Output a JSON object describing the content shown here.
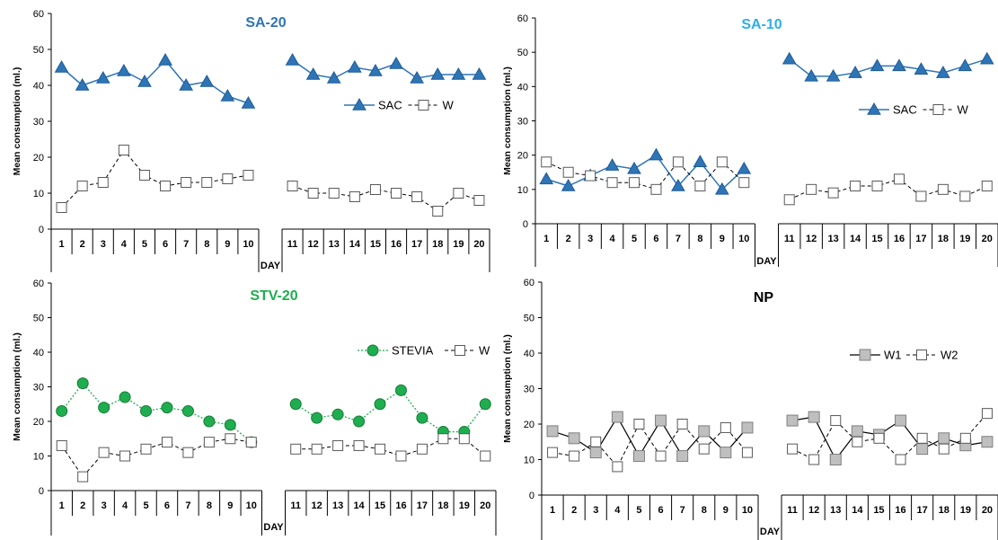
{
  "chart_data": [
    {
      "type": "line",
      "title": "SA-20",
      "title_color": "#2e75b6",
      "ylabel": "Mean consumption (ml.)",
      "xlabel": "DAY",
      "ylim": [
        0,
        60
      ],
      "yticks": [
        0,
        10,
        20,
        30,
        40,
        50,
        60
      ],
      "days": [
        1,
        2,
        3,
        4,
        5,
        6,
        7,
        8,
        9,
        10,
        11,
        12,
        13,
        14,
        15,
        16,
        17,
        18,
        19,
        20
      ],
      "series": [
        {
          "name": "SAC",
          "style": "solid-triangle",
          "color": "#2e75b6",
          "values": [
            45,
            40,
            42,
            44,
            41,
            47,
            40,
            41,
            37,
            35,
            47,
            43,
            42,
            45,
            44,
            46,
            42,
            43,
            43,
            43
          ]
        },
        {
          "name": "W",
          "style": "dashed-square-open",
          "color": "#000000",
          "values": [
            6,
            12,
            13,
            22,
            15,
            12,
            13,
            13,
            14,
            15,
            12,
            10,
            10,
            9,
            11,
            10,
            9,
            5,
            10,
            8
          ]
        }
      ]
    },
    {
      "type": "line",
      "title": "SA-10",
      "title_color": "#2ab0e6",
      "ylabel": "Mean consumption (ml.)",
      "xlabel": "DAY",
      "ylim": [
        0,
        60
      ],
      "yticks": [
        0,
        10,
        20,
        30,
        40,
        50,
        60
      ],
      "days": [
        1,
        2,
        3,
        4,
        5,
        6,
        7,
        8,
        9,
        10,
        11,
        12,
        13,
        14,
        15,
        16,
        17,
        18,
        19,
        20
      ],
      "series": [
        {
          "name": "SAC",
          "style": "solid-triangle",
          "color": "#2e75b6",
          "values": [
            13,
            11,
            14,
            17,
            16,
            20,
            11,
            18,
            10,
            16,
            48,
            43,
            43,
            44,
            46,
            46,
            45,
            44,
            46,
            48
          ]
        },
        {
          "name": "W",
          "style": "dashed-square-open",
          "color": "#000000",
          "values": [
            18,
            15,
            14,
            12,
            12,
            10,
            18,
            11,
            18,
            12,
            7,
            10,
            9,
            11,
            11,
            13,
            8,
            10,
            8,
            11
          ]
        }
      ]
    },
    {
      "type": "line",
      "title": "STV-20",
      "title_color": "#1fae4f",
      "ylabel": "Mean consumption (ml.)",
      "xlabel": "DAY",
      "ylim": [
        0,
        60
      ],
      "yticks": [
        0,
        10,
        20,
        30,
        40,
        50,
        60
      ],
      "days": [
        1,
        2,
        3,
        4,
        5,
        6,
        7,
        8,
        9,
        10,
        11,
        12,
        13,
        14,
        15,
        16,
        17,
        18,
        19,
        20
      ],
      "series": [
        {
          "name": "STEVIA",
          "style": "dotted-circle-green",
          "color": "#1fae4f",
          "values": [
            23,
            31,
            24,
            27,
            23,
            24,
            23,
            20,
            19,
            14,
            25,
            21,
            22,
            20,
            25,
            29,
            21,
            17,
            17,
            25
          ]
        },
        {
          "name": "W",
          "style": "dashed-square-open",
          "color": "#000000",
          "values": [
            13,
            4,
            11,
            10,
            12,
            14,
            11,
            14,
            15,
            14,
            12,
            12,
            13,
            13,
            12,
            10,
            12,
            15,
            15,
            10
          ]
        }
      ]
    },
    {
      "type": "line",
      "title": "NP",
      "title_color": "#000000",
      "ylabel": "Mean consumption (ml.)",
      "xlabel": "DAY",
      "ylim": [
        0,
        60
      ],
      "yticks": [
        0,
        10,
        20,
        30,
        40,
        50,
        60
      ],
      "days": [
        1,
        2,
        3,
        4,
        5,
        6,
        7,
        8,
        9,
        10,
        11,
        12,
        13,
        14,
        15,
        16,
        17,
        18,
        19,
        20
      ],
      "series": [
        {
          "name": "W1",
          "style": "solid-square-gray",
          "color": "#000000",
          "values": [
            18,
            16,
            12,
            22,
            11,
            21,
            11,
            18,
            12,
            19,
            21,
            22,
            10,
            18,
            17,
            21,
            13,
            16,
            14,
            15
          ]
        },
        {
          "name": "W2",
          "style": "dashed-square-open",
          "color": "#000000",
          "values": [
            12,
            11,
            15,
            8,
            20,
            11,
            20,
            13,
            19,
            12,
            13,
            10,
            21,
            15,
            16,
            10,
            16,
            13,
            16,
            23
          ]
        }
      ]
    }
  ]
}
